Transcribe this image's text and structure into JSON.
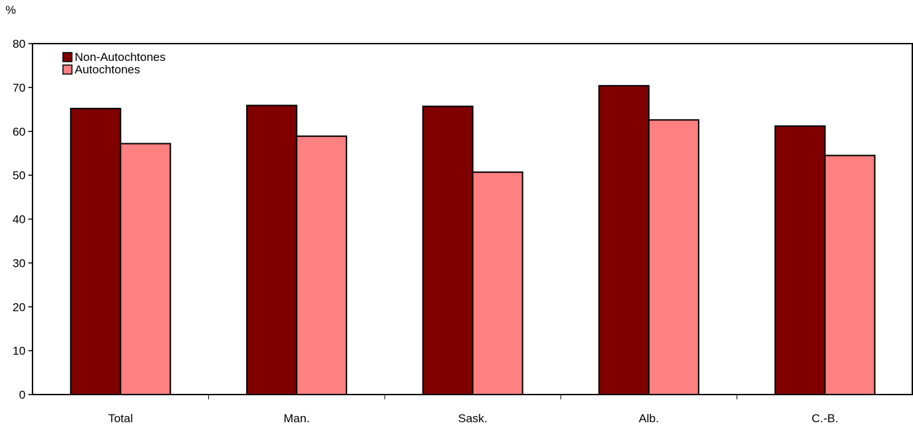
{
  "chart_data": {
    "type": "bar",
    "title": "",
    "xlabel": "",
    "ylabel": "%",
    "ylim": [
      0,
      80
    ],
    "yticks": [
      0,
      10,
      20,
      30,
      40,
      50,
      60,
      70,
      80
    ],
    "categories": [
      "Total",
      "Man.",
      "Sask.",
      "Alb.",
      "C.-B."
    ],
    "series": [
      {
        "name": "Non-Autochtones",
        "color": "#800000",
        "values": [
          65.2,
          65.9,
          65.7,
          70.4,
          61.2
        ]
      },
      {
        "name": "Autochtones",
        "color": "#ff8080",
        "values": [
          57.2,
          58.9,
          50.7,
          62.6,
          54.5
        ]
      }
    ],
    "legend_position": "top-left",
    "grid": false
  }
}
